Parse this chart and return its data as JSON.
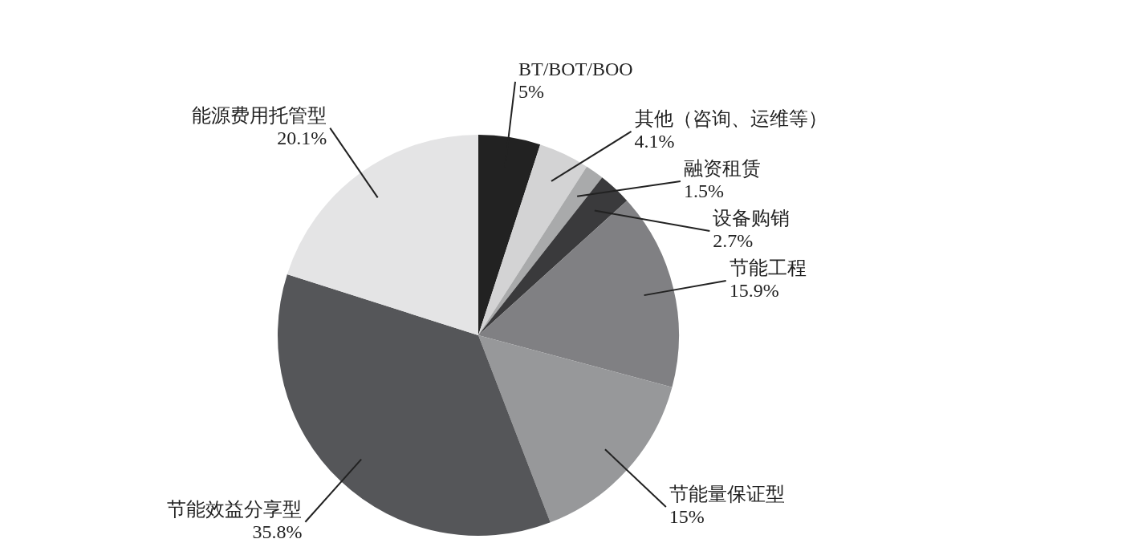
{
  "chart_data": {
    "type": "pie",
    "categories": [
      "BT/BOT/BOO",
      "其他（咨询、运维等）",
      "融资租赁",
      "设备购销",
      "节能工程",
      "节能量保证型",
      "节能效益分享型",
      "能源费用托管型"
    ],
    "values": [
      5,
      4.1,
      1.5,
      2.7,
      15.9,
      15,
      35.8,
      20.1
    ],
    "value_labels": [
      "5%",
      "4.1%",
      "1.5%",
      "2.7%",
      "15.9%",
      "15%",
      "35.8%",
      "20.1%"
    ],
    "colors": [
      "#222222",
      "#d3d3d4",
      "#a9aaab",
      "#3a3a3c",
      "#808083",
      "#97989a",
      "#555659",
      "#e4e4e5"
    ],
    "legend": false
  }
}
